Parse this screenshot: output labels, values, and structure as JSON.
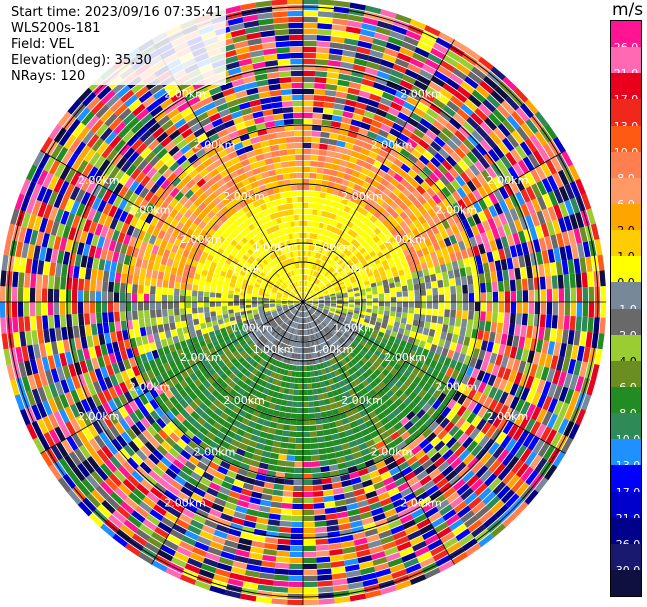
{
  "header": {
    "start_time": "Start time: 2023/09/16 07:35:41",
    "instrument": "WLS200s-181",
    "field": "Field: VEL",
    "elevation": "Elevation(deg): 35.30",
    "nrays": "NRays: 120"
  },
  "colorbar": {
    "unit": "m/s",
    "segments": [
      {
        "color": "#ff1493",
        "label": "26.0"
      },
      {
        "color": "#ff69b4",
        "label": "21.0"
      },
      {
        "color": "#e8001c",
        "label": "17.0"
      },
      {
        "color": "#f0281c",
        "label": "13.0"
      },
      {
        "color": "#ff5a14",
        "label": "10.0"
      },
      {
        "color": "#ff7f50",
        "label": "8.0"
      },
      {
        "color": "#ff9a66",
        "label": "6.0"
      },
      {
        "color": "#ffa500",
        "label": "2.0"
      },
      {
        "color": "#ffcc00",
        "label": "1.0"
      },
      {
        "color": "#ffff00",
        "label": "0.0"
      },
      {
        "color": "#778899",
        "label": "-1.0"
      },
      {
        "color": "#696969",
        "label": "-2.0"
      },
      {
        "color": "#9acd32",
        "label": "-4.0"
      },
      {
        "color": "#6b8e23",
        "label": "-6.0"
      },
      {
        "color": "#228b22",
        "label": "-8.0"
      },
      {
        "color": "#2e8b57",
        "label": "-10.0"
      },
      {
        "color": "#1e90ff",
        "label": "-13.0"
      },
      {
        "color": "#0000ff",
        "label": "-17.0"
      },
      {
        "color": "#0000cd",
        "label": "-21.0"
      },
      {
        "color": "#00008b",
        "label": "-26.0"
      },
      {
        "color": "#191970",
        "label": "-30.0"
      },
      {
        "color": "#101040",
        "label": ""
      }
    ]
  },
  "range_labels": [
    "1.00km",
    "2.00km"
  ]
}
